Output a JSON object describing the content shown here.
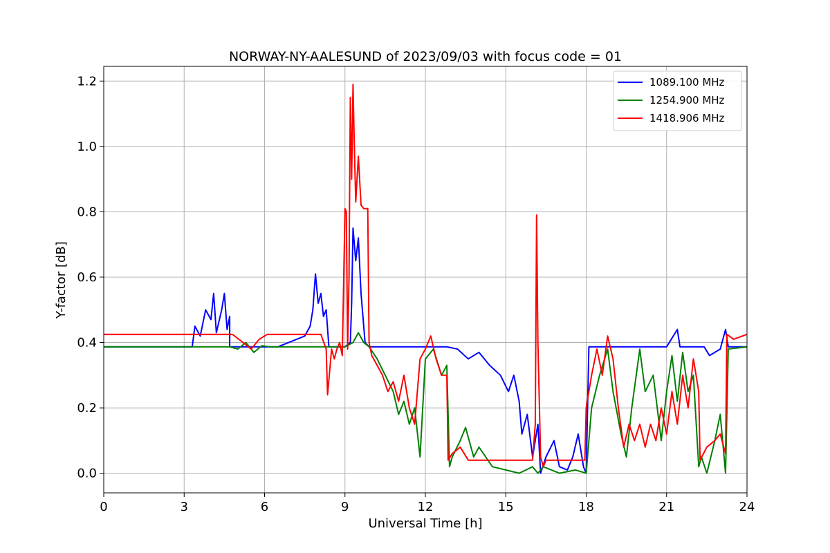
{
  "chart_data": {
    "type": "line",
    "title": "NORWAY-NY-AALESUND of 2023/09/03 with focus code = 01",
    "xlabel": "Universal Time [h]",
    "ylabel": "Y-factor [dB]",
    "xlim": [
      0,
      24
    ],
    "ylim": [
      -0.06,
      1.245
    ],
    "xticks": [
      0,
      3,
      6,
      9,
      12,
      15,
      18,
      21,
      24
    ],
    "xtick_labels": [
      "0",
      "3",
      "6",
      "9",
      "12",
      "15",
      "18",
      "21",
      "24"
    ],
    "yticks": [
      0.0,
      0.2,
      0.4,
      0.6,
      0.8,
      1.0,
      1.2
    ],
    "ytick_labels": [
      "0.0",
      "0.2",
      "0.4",
      "0.6",
      "0.8",
      "1.0",
      "1.2"
    ],
    "grid": true,
    "legend_position": "top-right",
    "series": [
      {
        "name": "1089.100 MHz",
        "color": "#0000ff",
        "x": [
          0,
          3.3,
          3.4,
          3.6,
          3.8,
          4.0,
          4.1,
          4.2,
          4.4,
          4.5,
          4.6,
          4.7,
          4.7,
          6.5,
          7.2,
          7.5,
          7.7,
          7.8,
          7.9,
          8.0,
          8.1,
          8.2,
          8.3,
          8.4,
          8.6,
          9.0,
          9.2,
          9.25,
          9.3,
          9.4,
          9.5,
          9.6,
          9.75,
          9.9,
          12.8,
          13.2,
          13.6,
          14.0,
          14.4,
          14.8,
          15.1,
          15.3,
          15.5,
          15.6,
          15.8,
          16.0,
          16.2,
          16.3,
          16.5,
          16.8,
          17.0,
          17.3,
          17.5,
          17.7,
          17.9,
          18.0,
          18.1,
          21.0,
          21.4,
          21.5,
          22.4,
          22.6,
          23.0,
          23.2,
          23.3,
          24
        ],
        "y": [
          0.387,
          0.387,
          0.45,
          0.42,
          0.5,
          0.47,
          0.55,
          0.43,
          0.5,
          0.55,
          0.44,
          0.48,
          0.387,
          0.387,
          0.41,
          0.42,
          0.45,
          0.5,
          0.61,
          0.52,
          0.55,
          0.48,
          0.5,
          0.387,
          0.387,
          0.387,
          0.4,
          0.52,
          0.75,
          0.65,
          0.72,
          0.55,
          0.4,
          0.387,
          0.387,
          0.38,
          0.35,
          0.37,
          0.33,
          0.3,
          0.25,
          0.3,
          0.22,
          0.12,
          0.18,
          0.05,
          0.15,
          0.0,
          0.05,
          0.1,
          0.02,
          0.01,
          0.05,
          0.12,
          0.02,
          0.0,
          0.387,
          0.387,
          0.44,
          0.387,
          0.387,
          0.36,
          0.38,
          0.44,
          0.387,
          0.387
        ]
      },
      {
        "name": "1254.900 MHz",
        "color": "#008000",
        "x": [
          0,
          4.7,
          5.0,
          5.3,
          5.6,
          5.9,
          6.2,
          9.0,
          9.3,
          9.5,
          9.7,
          9.9,
          10.2,
          10.5,
          10.8,
          11.0,
          11.2,
          11.4,
          11.6,
          11.8,
          12.0,
          12.3,
          12.6,
          12.8,
          12.9,
          13.0,
          13.3,
          13.5,
          13.8,
          14.0,
          14.5,
          15.0,
          15.5,
          16.0,
          16.2,
          16.4,
          17.0,
          17.6,
          18.0,
          18.2,
          18.5,
          18.8,
          19.0,
          19.3,
          19.5,
          19.7,
          20.0,
          20.2,
          20.5,
          20.8,
          21.0,
          21.2,
          21.4,
          21.6,
          21.8,
          22.0,
          22.2,
          22.3,
          22.5,
          22.8,
          23.0,
          23.2,
          23.3,
          24
        ],
        "y": [
          0.387,
          0.387,
          0.38,
          0.4,
          0.37,
          0.39,
          0.387,
          0.387,
          0.4,
          0.43,
          0.4,
          0.387,
          0.35,
          0.3,
          0.25,
          0.18,
          0.22,
          0.15,
          0.2,
          0.05,
          0.35,
          0.38,
          0.3,
          0.33,
          0.02,
          0.05,
          0.1,
          0.14,
          0.05,
          0.08,
          0.02,
          0.01,
          0.0,
          0.02,
          0.0,
          0.02,
          0.0,
          0.01,
          0.0,
          0.2,
          0.3,
          0.38,
          0.25,
          0.12,
          0.05,
          0.2,
          0.38,
          0.25,
          0.3,
          0.1,
          0.25,
          0.36,
          0.22,
          0.37,
          0.25,
          0.3,
          0.02,
          0.05,
          0.0,
          0.1,
          0.18,
          0.0,
          0.38,
          0.387
        ]
      },
      {
        "name": "1418.906 MHz",
        "color": "#ff0000",
        "x": [
          0,
          4.8,
          5.2,
          5.5,
          5.8,
          6.1,
          8.1,
          8.3,
          8.35,
          8.5,
          8.6,
          8.7,
          8.8,
          8.9,
          9.0,
          9.05,
          9.1,
          9.15,
          9.2,
          9.25,
          9.3,
          9.35,
          9.4,
          9.5,
          9.6,
          9.7,
          9.85,
          9.9,
          10.0,
          10.2,
          10.4,
          10.6,
          10.8,
          11.0,
          11.2,
          11.4,
          11.6,
          11.8,
          12.0,
          12.2,
          12.4,
          12.6,
          12.8,
          12.85,
          13.0,
          13.3,
          13.6,
          14.0,
          14.5,
          15.0,
          15.5,
          16.0,
          16.1,
          16.15,
          16.2,
          16.3,
          16.4,
          16.5,
          17.0,
          17.5,
          17.95,
          18.0,
          18.2,
          18.4,
          18.6,
          18.8,
          19.0,
          19.2,
          19.4,
          19.6,
          19.8,
          20.0,
          20.2,
          20.4,
          20.6,
          20.8,
          21.0,
          21.2,
          21.4,
          21.6,
          21.8,
          22.0,
          22.2,
          22.25,
          22.5,
          22.8,
          23.0,
          23.2,
          23.25,
          23.5,
          24
        ],
        "y": [
          0.425,
          0.425,
          0.4,
          0.38,
          0.41,
          0.425,
          0.425,
          0.38,
          0.24,
          0.38,
          0.35,
          0.38,
          0.4,
          0.36,
          0.81,
          0.8,
          0.38,
          0.6,
          1.15,
          0.9,
          1.19,
          1.0,
          0.83,
          0.97,
          0.82,
          0.81,
          0.81,
          0.4,
          0.36,
          0.33,
          0.3,
          0.25,
          0.28,
          0.22,
          0.3,
          0.2,
          0.15,
          0.35,
          0.38,
          0.42,
          0.35,
          0.3,
          0.3,
          0.04,
          0.06,
          0.08,
          0.04,
          0.04,
          0.04,
          0.04,
          0.04,
          0.04,
          0.15,
          0.79,
          0.4,
          0.05,
          0.02,
          0.04,
          0.04,
          0.04,
          0.04,
          0.2,
          0.3,
          0.38,
          0.3,
          0.42,
          0.35,
          0.2,
          0.08,
          0.15,
          0.1,
          0.15,
          0.08,
          0.15,
          0.1,
          0.2,
          0.12,
          0.25,
          0.15,
          0.3,
          0.2,
          0.35,
          0.25,
          0.04,
          0.08,
          0.1,
          0.12,
          0.06,
          0.425,
          0.41,
          0.425
        ]
      }
    ]
  }
}
